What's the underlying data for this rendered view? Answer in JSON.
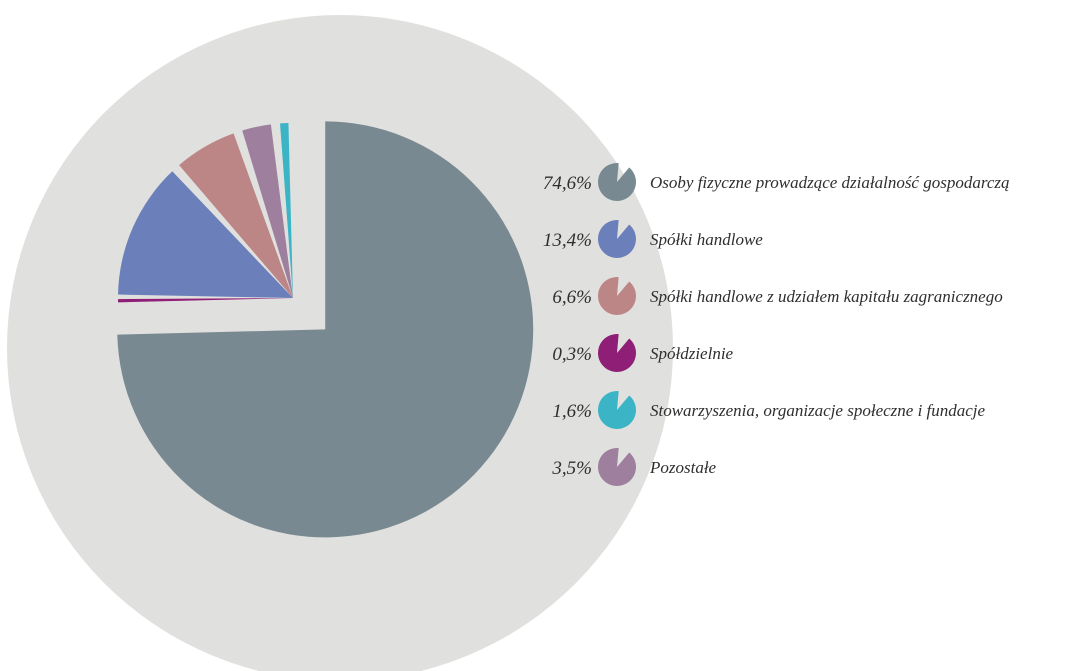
{
  "chart_data": {
    "type": "pie",
    "title": "",
    "slices": [
      {
        "label": "Osoby fizyczne prowadzące działalność gospodarczą",
        "value": 74.6,
        "value_label": "74,6%",
        "color": "#798991"
      },
      {
        "label": "Spółki handlowe",
        "value": 13.4,
        "value_label": "13,4%",
        "color": "#6b7fba"
      },
      {
        "label": "Spółki handlowe z udziałem kapitału zagranicznego",
        "value": 6.6,
        "value_label": "6,6%",
        "color": "#bc8686"
      },
      {
        "label": "Spółdzielnie",
        "value": 0.3,
        "value_label": "0,3%",
        "color": "#8f1f76"
      },
      {
        "label": "Stowarzyszenia, organizacje społeczne i fundacje",
        "value": 1.6,
        "value_label": "1,6%",
        "color": "#3bb4c6"
      },
      {
        "label": "Pozostałe",
        "value": 3.5,
        "value_label": "3,5%",
        "color": "#9e7f9e"
      }
    ],
    "background_color": "#e0e0de",
    "legend_placement": "right"
  }
}
